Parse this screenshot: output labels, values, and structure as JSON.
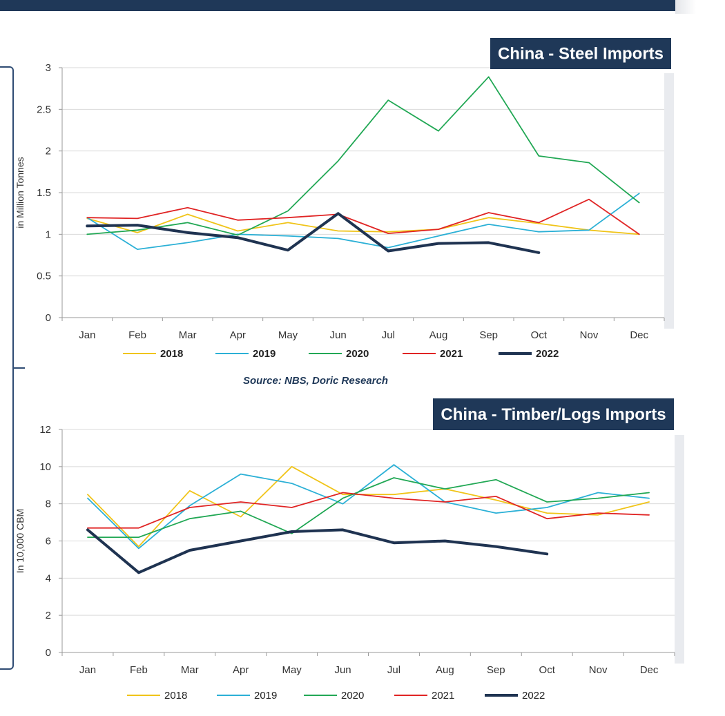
{
  "colors": {
    "2018": "#f0c419",
    "2019": "#2bb0d6",
    "2020": "#22a855",
    "2021": "#e02424",
    "2022": "#1f3351",
    "title_bg": "#1f3858"
  },
  "source_text": "Source: NBS, Doric Research",
  "chart_data": [
    {
      "type": "line",
      "title": "China - Steel Imports",
      "ylabel": "in Million Tonnes",
      "xlabel": "",
      "ylim": [
        0,
        3
      ],
      "yticks": [
        "0",
        "0.5",
        "1",
        "1.5",
        "2",
        "2.5",
        "3"
      ],
      "ytick_values": [
        0,
        0.5,
        1,
        1.5,
        2,
        2.5,
        3
      ],
      "categories": [
        "Jan",
        "Feb",
        "Mar",
        "Apr",
        "May",
        "Jun",
        "Jul",
        "Aug",
        "Sep",
        "Oct",
        "Nov",
        "Dec"
      ],
      "legend_position": "bottom",
      "series": [
        {
          "name": "2018",
          "values": [
            1.19,
            1.02,
            1.24,
            1.04,
            1.14,
            1.04,
            1.03,
            1.06,
            1.2,
            1.13,
            1.05,
            1.0
          ]
        },
        {
          "name": "2019",
          "values": [
            1.2,
            0.82,
            0.9,
            1.0,
            0.98,
            0.95,
            0.84,
            0.98,
            1.12,
            1.03,
            1.05,
            1.49
          ]
        },
        {
          "name": "2020",
          "values": [
            1.0,
            1.05,
            1.14,
            0.99,
            1.28,
            1.88,
            2.61,
            2.24,
            2.89,
            1.94,
            1.86,
            1.38
          ]
        },
        {
          "name": "2021",
          "values": [
            1.2,
            1.19,
            1.32,
            1.17,
            1.2,
            1.24,
            1.01,
            1.06,
            1.26,
            1.14,
            1.42,
            1.0
          ]
        },
        {
          "name": "2022",
          "values": [
            1.1,
            1.11,
            1.02,
            0.96,
            0.81,
            1.25,
            0.8,
            0.89,
            0.9,
            0.78,
            null,
            null
          ]
        }
      ]
    },
    {
      "type": "line",
      "title": "China - Timber/Logs Imports",
      "ylabel": "In 10,000 CBM",
      "xlabel": "",
      "ylim": [
        0,
        12
      ],
      "yticks": [
        "0",
        "2",
        "4",
        "6",
        "8",
        "10",
        "12"
      ],
      "ytick_values": [
        0,
        2,
        4,
        6,
        8,
        10,
        12
      ],
      "categories": [
        "Jan",
        "Feb",
        "Mar",
        "Apr",
        "May",
        "Jun",
        "Jul",
        "Aug",
        "Sep",
        "Oct",
        "Nov",
        "Dec"
      ],
      "legend_position": "bottom",
      "series": [
        {
          "name": "2018",
          "values": [
            8.5,
            5.7,
            8.7,
            7.3,
            10.0,
            8.5,
            8.5,
            8.8,
            8.2,
            7.5,
            7.4,
            8.1
          ]
        },
        {
          "name": "2019",
          "values": [
            8.3,
            5.6,
            7.9,
            9.6,
            9.1,
            8.0,
            10.1,
            8.1,
            7.5,
            7.8,
            8.6,
            8.3
          ]
        },
        {
          "name": "2020",
          "values": [
            6.2,
            6.2,
            7.2,
            7.6,
            6.4,
            8.3,
            9.4,
            8.8,
            9.3,
            8.1,
            8.3,
            8.6
          ]
        },
        {
          "name": "2021",
          "values": [
            6.7,
            6.7,
            7.8,
            8.1,
            7.8,
            8.6,
            8.3,
            8.1,
            8.4,
            7.2,
            7.5,
            7.4
          ]
        },
        {
          "name": "2022",
          "values": [
            6.6,
            4.3,
            5.5,
            6.0,
            6.5,
            6.6,
            5.9,
            6.0,
            5.7,
            5.3,
            null,
            null
          ]
        }
      ]
    }
  ]
}
